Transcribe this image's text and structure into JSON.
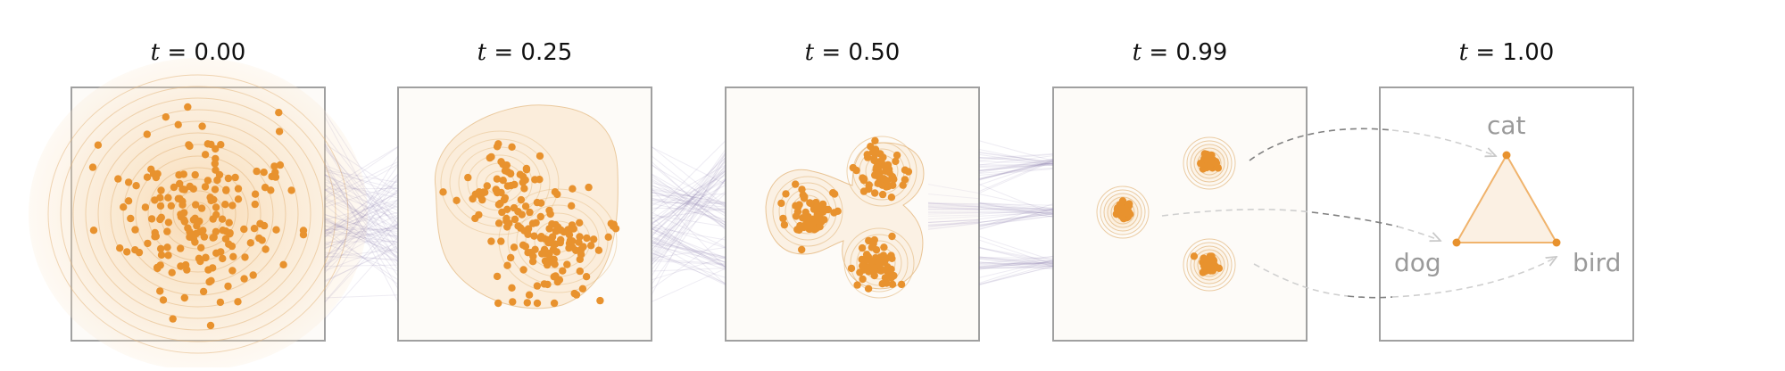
{
  "panels": [
    {
      "t_var": "t",
      "t_value": "= 0.00"
    },
    {
      "t_var": "t",
      "t_value": "= 0.25"
    },
    {
      "t_var": "t",
      "t_value": "= 0.50"
    },
    {
      "t_var": "t",
      "t_value": "= 0.99"
    },
    {
      "t_var": "t",
      "t_value": "= 1.00"
    }
  ],
  "simplex": {
    "labels": {
      "top": "cat",
      "left": "dog",
      "right": "bird"
    }
  },
  "colors": {
    "points": "#e8922e",
    "density": "#f6c98e",
    "contour": "#e3b77d",
    "panel_border": "#a0a0a0",
    "panel_bg": "#fdfbf8",
    "flow_lines": "#8a78ad",
    "arrows": "#cfcfcf",
    "dark_arrows": "#808080",
    "label": "#9a9a9a"
  }
}
